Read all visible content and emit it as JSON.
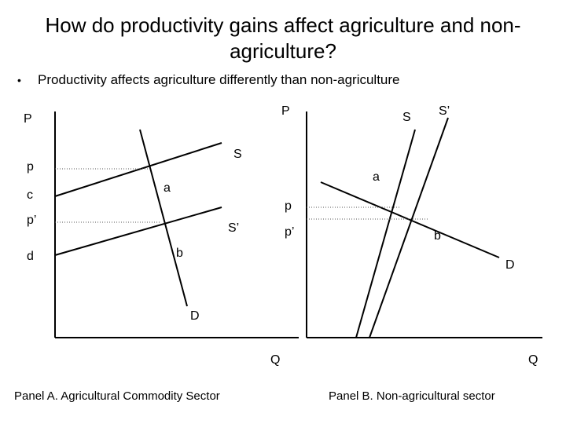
{
  "title": "How do productivity gains affect agriculture and non-agriculture?",
  "bullet_text": "Productivity affects agriculture differently than non-agriculture",
  "panel_a": {
    "y_axis_label": "P",
    "x_axis_label": "Q",
    "price_labels": {
      "p": "p",
      "c": "c",
      "p_prime": "p’",
      "d": "d"
    },
    "curve_labels": {
      "S": "S",
      "S_prime": "S’",
      "D": "D"
    },
    "point_labels": {
      "a": "a",
      "b": "b"
    },
    "caption": "Panel A. Agricultural Commodity Sector"
  },
  "panel_b": {
    "y_axis_label": "P",
    "x_axis_label": "Q",
    "price_labels": {
      "p": "p",
      "p_prime": "p’"
    },
    "curve_labels": {
      "S": "S",
      "S_prime": "S’",
      "D": "D"
    },
    "point_labels": {
      "a": "a",
      "b": "b"
    },
    "caption": "Panel B. Non-agricultural sector"
  }
}
